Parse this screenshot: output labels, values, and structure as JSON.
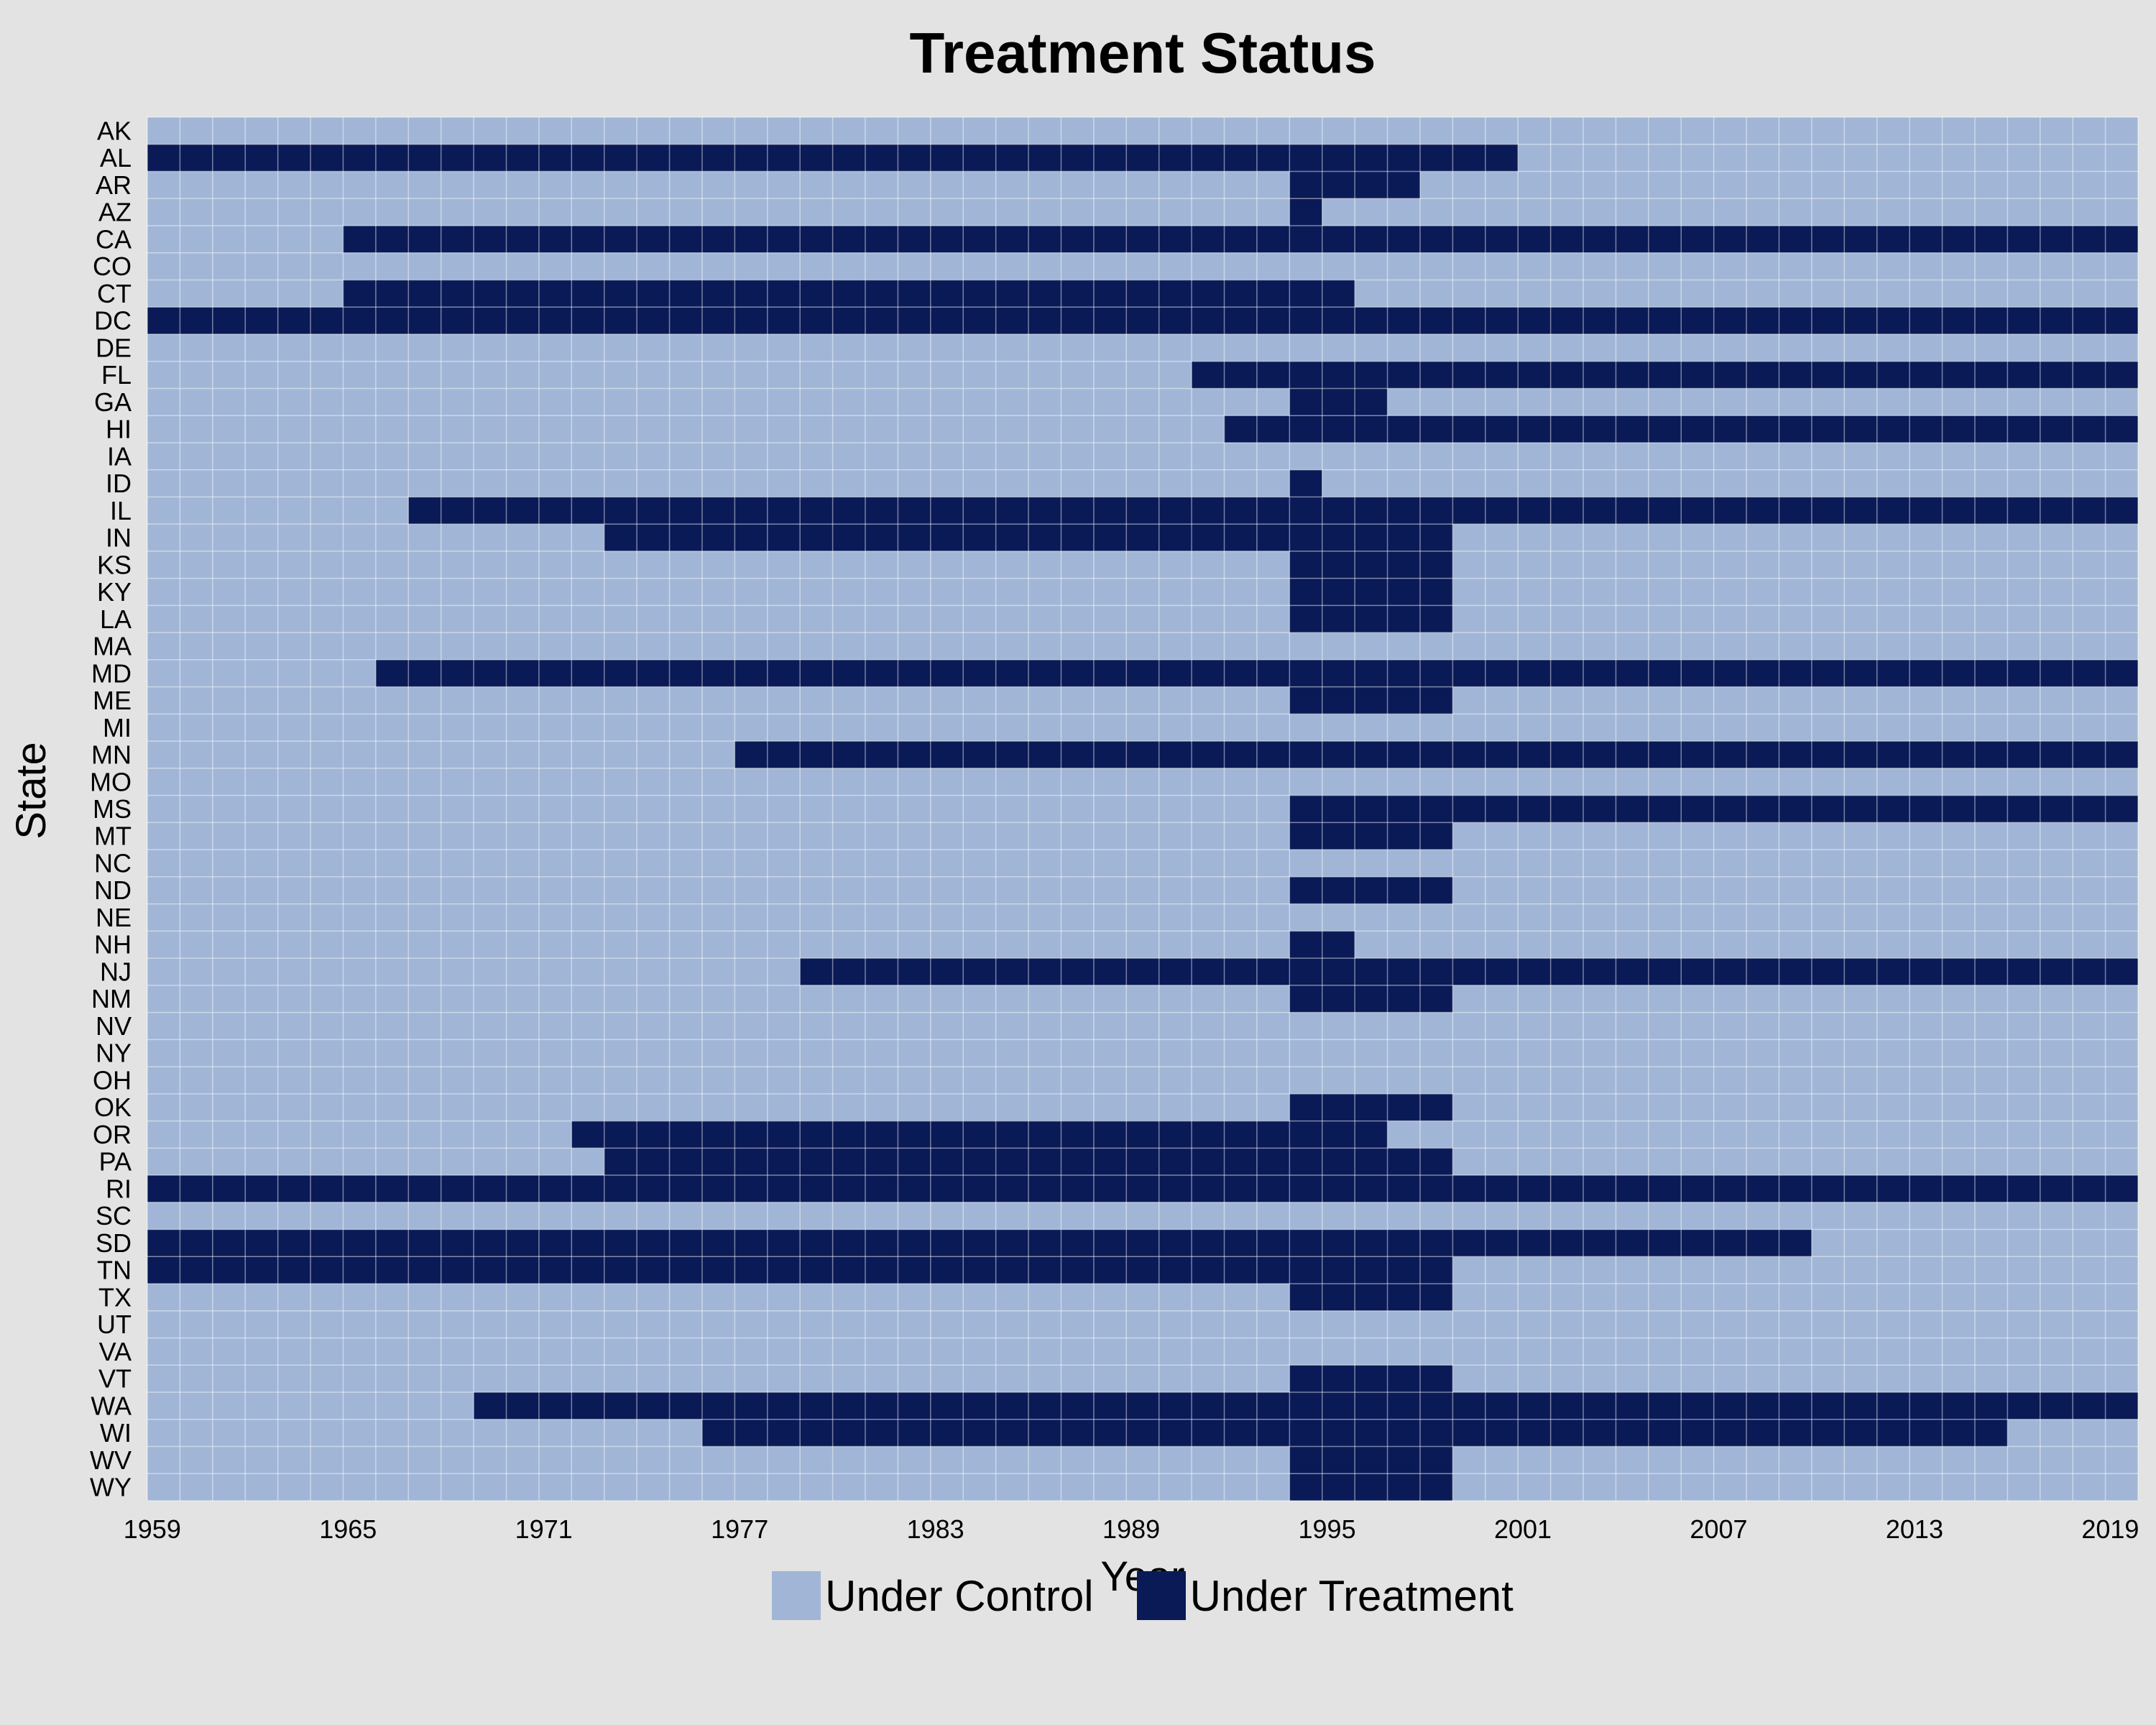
{
  "chart_data": {
    "type": "heatmap",
    "title": "Treatment Status",
    "xlabel": "Year",
    "ylabel": "State",
    "x_range": [
      1959,
      2019
    ],
    "x_tick_labels": [
      "1959",
      "1965",
      "1971",
      "1977",
      "1983",
      "1989",
      "1995",
      "2001",
      "2007",
      "2013",
      "2019"
    ],
    "states": [
      "AK",
      "AL",
      "AR",
      "AZ",
      "CA",
      "CO",
      "CT",
      "DC",
      "DE",
      "FL",
      "GA",
      "HI",
      "IA",
      "ID",
      "IL",
      "IN",
      "KS",
      "KY",
      "LA",
      "MA",
      "MD",
      "ME",
      "MI",
      "MN",
      "MO",
      "MS",
      "MT",
      "NC",
      "ND",
      "NE",
      "NH",
      "NJ",
      "NM",
      "NV",
      "NY",
      "OH",
      "OK",
      "OR",
      "PA",
      "RI",
      "SC",
      "SD",
      "TN",
      "TX",
      "UT",
      "VA",
      "VT",
      "WA",
      "WI",
      "WV",
      "WY"
    ],
    "treatment_intervals": {
      "AL": [
        [
          1959,
          2000
        ]
      ],
      "AR": [
        [
          1994,
          1997
        ]
      ],
      "AZ": [
        [
          1994,
          1994
        ]
      ],
      "CA": [
        [
          1965,
          2019
        ]
      ],
      "CT": [
        [
          1965,
          1995
        ]
      ],
      "DC": [
        [
          1959,
          2019
        ]
      ],
      "FL": [
        [
          1991,
          2019
        ]
      ],
      "GA": [
        [
          1994,
          1996
        ]
      ],
      "HI": [
        [
          1992,
          2019
        ]
      ],
      "ID": [
        [
          1994,
          1994
        ]
      ],
      "IL": [
        [
          1967,
          2019
        ]
      ],
      "IN": [
        [
          1973,
          1998
        ]
      ],
      "KS": [
        [
          1994,
          1998
        ]
      ],
      "KY": [
        [
          1994,
          1998
        ]
      ],
      "LA": [
        [
          1994,
          1998
        ]
      ],
      "MD": [
        [
          1966,
          2019
        ]
      ],
      "ME": [
        [
          1994,
          1998
        ]
      ],
      "MN": [
        [
          1977,
          2019
        ]
      ],
      "MS": [
        [
          1994,
          2019
        ]
      ],
      "MT": [
        [
          1994,
          1998
        ]
      ],
      "ND": [
        [
          1994,
          1998
        ]
      ],
      "NH": [
        [
          1994,
          1995
        ]
      ],
      "NJ": [
        [
          1979,
          2019
        ]
      ],
      "NM": [
        [
          1994,
          1998
        ]
      ],
      "OK": [
        [
          1994,
          1998
        ]
      ],
      "OR": [
        [
          1972,
          1996
        ]
      ],
      "PA": [
        [
          1973,
          1998
        ]
      ],
      "RI": [
        [
          1959,
          2019
        ]
      ],
      "SD": [
        [
          1959,
          2009
        ]
      ],
      "TN": [
        [
          1959,
          1998
        ]
      ],
      "TX": [
        [
          1994,
          1998
        ]
      ],
      "VT": [
        [
          1994,
          1998
        ]
      ],
      "WA": [
        [
          1969,
          2019
        ]
      ],
      "WI": [
        [
          1976,
          2015
        ]
      ],
      "WV": [
        [
          1994,
          1998
        ]
      ],
      "WY": [
        [
          1994,
          1998
        ]
      ]
    },
    "grid": true,
    "legend_position": "bottom",
    "legend": [
      {
        "label": "Under Control",
        "color": "#a1b6d6"
      },
      {
        "label": "Under Treatment",
        "color": "#0a1a57"
      }
    ]
  }
}
